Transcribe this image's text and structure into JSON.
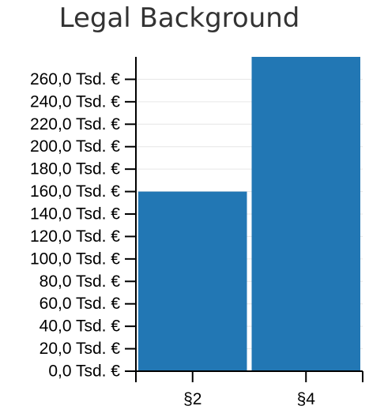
{
  "chart_data": {
    "type": "bar",
    "title": "Legal Background",
    "categories": [
      "§2",
      "§4"
    ],
    "values": [
      160000,
      280000
    ],
    "ylim": [
      0,
      280000
    ],
    "ytick_values": [
      0,
      20000,
      40000,
      60000,
      80000,
      100000,
      120000,
      140000,
      160000,
      180000,
      200000,
      220000,
      240000,
      260000
    ],
    "ytick_labels": [
      "0,0 Tsd. €",
      "20,0 Tsd. €",
      "40,0 Tsd. €",
      "60,0 Tsd. €",
      "80,0 Tsd. €",
      "100,0 Tsd. €",
      "120,0 Tsd. €",
      "140,0 Tsd. €",
      "160,0 Tsd. €",
      "180,0 Tsd. €",
      "200,0 Tsd. €",
      "220,0 Tsd. €",
      "240,0 Tsd. €",
      "260,0 Tsd. €"
    ],
    "xlabel": "",
    "ylabel": "",
    "grid": true,
    "bar_color": "#2277b4"
  }
}
